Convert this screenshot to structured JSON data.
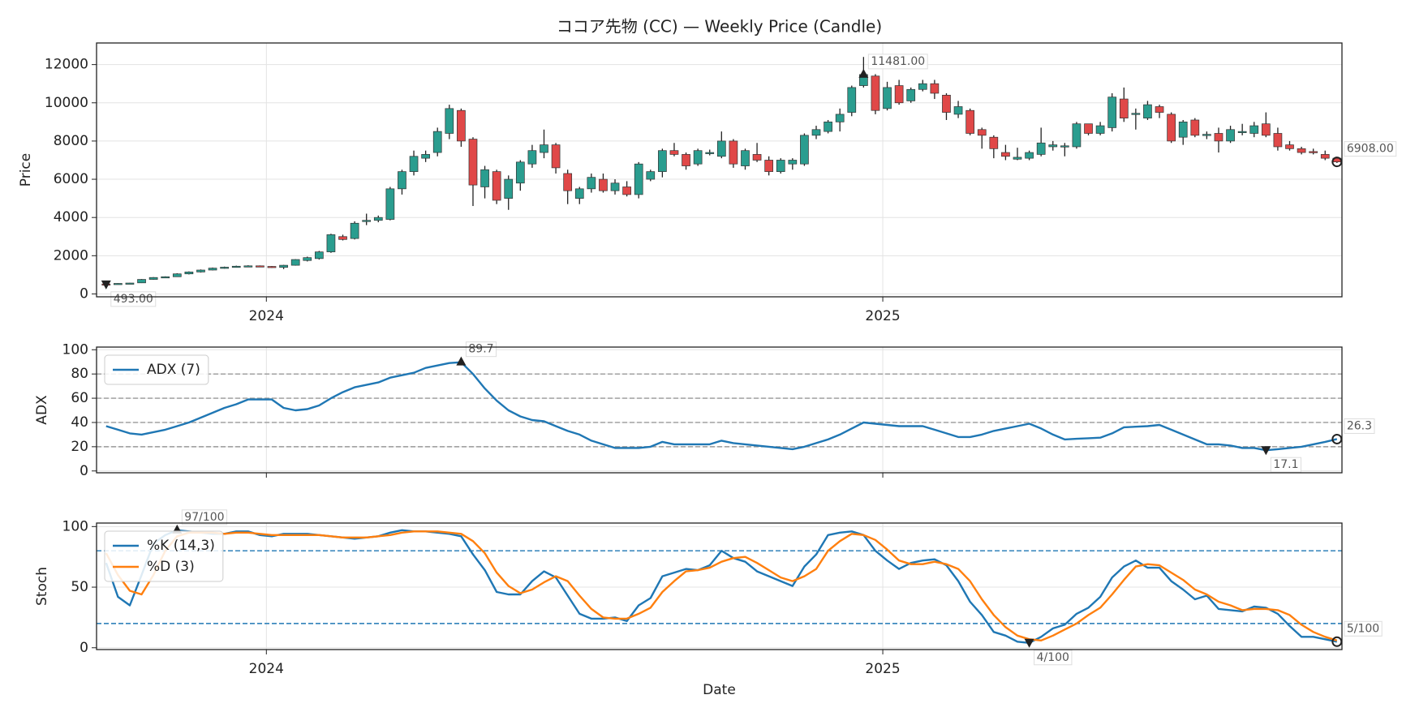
{
  "chart_data": [
    {
      "type": "candlestick",
      "title": "ココア先物 (CC) — Weekly Price (Candle)",
      "y_label": "Price",
      "up_color": "#2a9d8f",
      "down_color": "#e04848",
      "grid": true,
      "xlim": [
        2023.7245,
        2025.7449
      ],
      "xticks": [
        2024,
        2025
      ],
      "ylim": [
        -150,
        13130
      ],
      "yticks": [
        0,
        2000,
        4000,
        6000,
        8000,
        10000,
        12000
      ],
      "x": [
        2023.74,
        2023.7592,
        2023.7784,
        2023.7976,
        2023.8168,
        2023.836,
        2023.8552,
        2023.8744,
        2023.8936,
        2023.9128,
        2023.932,
        2023.9512,
        2023.9704,
        2023.9896,
        2024.0088,
        2024.028,
        2024.0472,
        2024.0664,
        2024.0856,
        2024.1048,
        2024.124,
        2024.1432,
        2024.1624,
        2024.1816,
        2024.2008,
        2024.22,
        2024.2392,
        2024.2584,
        2024.2776,
        2024.2968,
        2024.316,
        2024.3352,
        2024.3544,
        2024.3736,
        2024.3928,
        2024.412,
        2024.4312,
        2024.4504,
        2024.4696,
        2024.4888,
        2024.508,
        2024.5272,
        2024.5464,
        2024.5656,
        2024.5848,
        2024.604,
        2024.6232,
        2024.6424,
        2024.6616,
        2024.6808,
        2024.7,
        2024.7192,
        2024.7384,
        2024.7576,
        2024.7768,
        2024.796,
        2024.8152,
        2024.8344,
        2024.8536,
        2024.8728,
        2024.892,
        2024.9112,
        2024.9304,
        2024.9496,
        2024.9688,
        2024.988,
        2025.0072,
        2025.0264,
        2025.0456,
        2025.0648,
        2025.084,
        2025.1032,
        2025.1224,
        2025.1416,
        2025.1608,
        2025.18,
        2025.1992,
        2025.2184,
        2025.2376,
        2025.2568,
        2025.276,
        2025.2952,
        2025.3144,
        2025.3336,
        2025.3528,
        2025.372,
        2025.3912,
        2025.4104,
        2025.4296,
        2025.4488,
        2025.468,
        2025.4872,
        2025.5064,
        2025.5256,
        2025.5448,
        2025.564,
        2025.5832,
        2025.6024,
        2025.6216,
        2025.6408,
        2025.66,
        2025.6792,
        2025.6984,
        2025.7176,
        2025.7368
      ],
      "open": [
        520,
        510,
        550,
        580,
        760,
        860,
        900,
        1050,
        1150,
        1250,
        1350,
        1400,
        1450,
        1470,
        1440,
        1390,
        1500,
        1750,
        1850,
        2200,
        3000,
        2900,
        3800,
        3850,
        3900,
        5500,
        6400,
        7100,
        7400,
        8400,
        9600,
        8100,
        5600,
        6400,
        5000,
        5800,
        6800,
        7400,
        7800,
        6300,
        5000,
        5500,
        6000,
        5400,
        5600,
        5200,
        6000,
        6400,
        7500,
        7300,
        6800,
        7350,
        7200,
        8000,
        6700,
        7300,
        7000,
        6400,
        6800,
        6800,
        8300,
        8500,
        9000,
        9500,
        10900,
        11400,
        9700,
        10900,
        10100,
        10700,
        11000,
        10400,
        9400,
        9600,
        8600,
        8200,
        7400,
        7050,
        7100,
        7300,
        7700,
        7700,
        7700,
        8900,
        8400,
        8700,
        10200,
        9400,
        9200,
        9800,
        9400,
        8200,
        9100,
        8300,
        8400,
        8000,
        8450,
        8400,
        8900,
        8400,
        7800,
        7600,
        7450,
        7300,
        7100
      ],
      "high": [
        540,
        560,
        580,
        780,
        880,
        920,
        1080,
        1180,
        1280,
        1380,
        1430,
        1480,
        1500,
        1490,
        1460,
        1520,
        1820,
        1950,
        2250,
        3150,
        3100,
        3800,
        4200,
        4100,
        5600,
        6500,
        7500,
        7500,
        8700,
        9900,
        9700,
        8200,
        6700,
        6500,
        6200,
        7000,
        7800,
        8600,
        7900,
        6500,
        5600,
        6300,
        6300,
        6000,
        5900,
        6900,
        6500,
        7600,
        7900,
        7400,
        7600,
        7550,
        8500,
        8100,
        7600,
        7900,
        7200,
        7100,
        7100,
        8400,
        8800,
        9100,
        9700,
        10900,
        12400,
        11500,
        11100,
        11200,
        10800,
        11200,
        11200,
        10500,
        10100,
        9700,
        8700,
        8300,
        7800,
        7650,
        7500,
        8700,
        8000,
        7900,
        9000,
        8900,
        9000,
        10500,
        10800,
        9700,
        10100,
        9900,
        9500,
        9100,
        9200,
        8500,
        8700,
        8800,
        8900,
        9000,
        9500,
        8700,
        8000,
        7700,
        7600,
        7500,
        7150
      ],
      "low": [
        493,
        500,
        540,
        570,
        740,
        840,
        890,
        1020,
        1120,
        1230,
        1320,
        1380,
        1420,
        1420,
        1360,
        1300,
        1480,
        1700,
        1800,
        2150,
        2800,
        2850,
        3600,
        3750,
        3850,
        5200,
        6200,
        6900,
        7200,
        8100,
        7700,
        4600,
        5000,
        4700,
        4400,
        5400,
        6600,
        7100,
        6300,
        4700,
        4700,
        5300,
        5300,
        5200,
        5100,
        5000,
        5900,
        6100,
        7200,
        6500,
        6700,
        7250,
        7100,
        6600,
        6500,
        6900,
        6200,
        6300,
        6500,
        6700,
        8100,
        8400,
        8500,
        9300,
        10800,
        9400,
        9600,
        9900,
        10000,
        10600,
        10200,
        9100,
        9200,
        8300,
        7600,
        7100,
        7000,
        7000,
        7000,
        7200,
        7500,
        7200,
        7600,
        8300,
        8300,
        8500,
        9000,
        8600,
        9100,
        9200,
        7900,
        7800,
        8200,
        8100,
        7400,
        7900,
        8300,
        8200,
        8200,
        7500,
        7500,
        7300,
        7300,
        7000,
        6850
      ],
      "close": [
        510,
        550,
        570,
        760,
        860,
        900,
        1050,
        1150,
        1250,
        1350,
        1400,
        1450,
        1470,
        1440,
        1390,
        1500,
        1800,
        1900,
        2200,
        3100,
        2850,
        3700,
        3850,
        4000,
        5500,
        6400,
        7200,
        7300,
        8500,
        9700,
        8000,
        5700,
        6500,
        4900,
        6000,
        6900,
        7500,
        7800,
        6600,
        5400,
        5500,
        6100,
        5400,
        5800,
        5200,
        6800,
        6400,
        7500,
        7300,
        6700,
        7500,
        7400,
        8000,
        6800,
        7500,
        7000,
        6400,
        7000,
        7000,
        8300,
        8600,
        9000,
        9400,
        10800,
        11481,
        9600,
        10800,
        10000,
        10700,
        11000,
        10500,
        9500,
        9800,
        8400,
        8300,
        7600,
        7200,
        7150,
        7400,
        7900,
        7800,
        7750,
        8900,
        8400,
        8800,
        10300,
        9200,
        9450,
        9900,
        9500,
        8000,
        9000,
        8300,
        8350,
        8000,
        8600,
        8500,
        8800,
        8300,
        7700,
        7600,
        7400,
        7400,
        7100,
        6908
      ],
      "annotations": [
        {
          "x": 2024.9688,
          "y": 11481,
          "label": "11481.00",
          "marker": "up"
        },
        {
          "x": 2023.74,
          "y": 493,
          "label": "493.00",
          "marker": "down"
        },
        {
          "x": 2025.7368,
          "y": 6908,
          "label": "6908.00",
          "marker": "circle"
        }
      ]
    },
    {
      "type": "line",
      "y_label": "ADX",
      "grid": true,
      "xtick_labels": false,
      "xlim": [
        2023.7245,
        2025.7449
      ],
      "xticks": [
        2024,
        2025
      ],
      "ylim": [
        -1.5,
        102.2
      ],
      "yticks": [
        0,
        20,
        40,
        60,
        80,
        100
      ],
      "hlines": [
        20,
        40,
        60,
        80
      ],
      "hline_color": "#999999",
      "legend": "upper left",
      "series": [
        {
          "name": "ADX (7)",
          "color": "#1f77b4",
          "values": [
            37,
            34,
            31,
            30,
            32,
            34,
            37,
            40,
            44,
            48,
            52,
            55,
            59,
            59,
            59,
            52,
            50,
            51,
            54,
            60,
            65,
            69,
            71,
            73,
            77,
            79,
            81,
            85,
            87,
            89,
            89.7,
            80,
            68,
            58,
            50,
            45,
            42,
            41,
            37,
            33,
            30,
            25,
            22,
            19,
            19,
            19,
            20,
            24,
            22,
            22,
            22,
            22,
            25,
            23,
            22,
            21,
            20,
            19,
            18,
            20,
            23,
            26,
            30,
            35,
            40,
            39,
            38,
            37,
            37,
            37,
            34,
            31,
            28,
            28,
            30,
            33,
            35,
            37,
            39,
            35,
            30,
            26,
            26.5,
            27,
            27.5,
            31,
            36,
            36.5,
            37,
            38,
            34,
            30,
            26,
            22,
            22,
            21,
            19,
            19,
            17.1,
            18,
            19,
            20,
            22,
            24,
            26.3
          ]
        }
      ],
      "annotations": [
        {
          "x": 2024.316,
          "y": 89.7,
          "label": "89.7",
          "marker": "up"
        },
        {
          "x": 2025.6216,
          "y": 17.1,
          "label": "17.1",
          "marker": "down"
        },
        {
          "x": 2025.7368,
          "y": 26.3,
          "label": "26.3",
          "marker": "circle"
        }
      ]
    },
    {
      "type": "line",
      "y_label": "Stoch",
      "x_label": "Date",
      "grid": true,
      "xlim": [
        2023.7245,
        2025.7449
      ],
      "xticks": [
        2024,
        2025
      ],
      "ylim": [
        -1.5,
        102.9
      ],
      "yticks": [
        0,
        50,
        100
      ],
      "hlines": [
        20,
        80
      ],
      "hline_color": "#1f77b4",
      "legend": "upper left",
      "series": [
        {
          "name": "%K (14,3)",
          "color": "#1f77b4",
          "values": [
            70,
            42,
            35,
            60,
            86,
            93,
            97,
            96,
            95,
            94,
            94,
            96,
            96,
            93,
            92,
            94,
            94,
            94,
            93,
            92,
            91,
            90,
            91,
            92,
            95,
            97,
            96,
            96,
            95,
            94,
            92,
            77,
            64,
            46,
            44,
            44,
            55,
            63,
            58,
            43,
            28,
            24,
            24,
            25,
            22,
            35,
            41,
            59,
            62,
            65,
            64,
            68,
            80,
            74,
            71,
            63,
            59,
            55,
            51,
            67,
            77,
            93,
            95,
            96,
            93,
            80,
            72,
            65,
            70,
            72,
            73,
            68,
            55,
            38,
            27,
            13,
            10,
            5,
            4,
            9,
            16,
            19,
            28,
            33,
            42,
            58,
            67,
            72,
            66,
            66,
            55,
            48,
            40,
            43,
            32,
            31,
            30,
            34,
            33,
            28,
            18,
            9,
            9,
            7,
            5
          ]
        },
        {
          "name": "%D (3)",
          "color": "#ff7f0e",
          "values": [
            78,
            60,
            47,
            44,
            60,
            80,
            92,
            95,
            95,
            95,
            94,
            95,
            95,
            94,
            93,
            93,
            93,
            93,
            93,
            92,
            91,
            91,
            91,
            92,
            93,
            95,
            96,
            96,
            96,
            95,
            94,
            88,
            78,
            62,
            51,
            45,
            48,
            54,
            59,
            55,
            43,
            32,
            25,
            24,
            24,
            28,
            33,
            46,
            55,
            63,
            64,
            66,
            71,
            74,
            75,
            70,
            64,
            58,
            55,
            59,
            65,
            80,
            88,
            94,
            93,
            89,
            81,
            72,
            69,
            69,
            71,
            69,
            65,
            55,
            40,
            27,
            17,
            10,
            7,
            6,
            10,
            15,
            20,
            27,
            33,
            44,
            56,
            67,
            69,
            68,
            62,
            56,
            48,
            44,
            38,
            35,
            31,
            32,
            32,
            31,
            27,
            19,
            13,
            9,
            6
          ]
        }
      ],
      "annotations": [
        {
          "x": 2023.8552,
          "y": 97,
          "label": "97/100",
          "marker": "up"
        },
        {
          "x": 2025.2376,
          "y": 4,
          "label": "4/100",
          "marker": "down"
        },
        {
          "x": 2025.7368,
          "y": 5,
          "label": "5/100",
          "marker": "circle"
        }
      ]
    }
  ]
}
